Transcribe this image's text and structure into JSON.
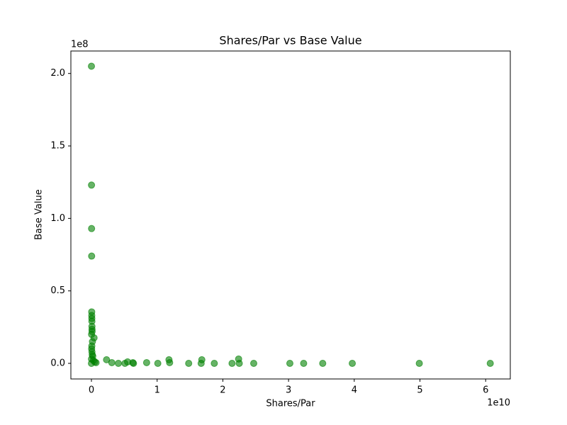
{
  "chart_data": {
    "type": "scatter",
    "title": "Shares/Par vs Base Value",
    "x_label": "Shares/Par",
    "y_label": "Base Value",
    "x_offset_label": "1e10",
    "y_offset_label": "1e8",
    "series": [
      {
        "name": "Base Value",
        "color": "green",
        "x": [
          0,
          10000000,
          20000000,
          30000000,
          40000000,
          50000000,
          60000000,
          70000000,
          80000000,
          90000000,
          100000000,
          20000000,
          400000000,
          150000000,
          60000000,
          30000000,
          80000000,
          120000000,
          200000000,
          10000000,
          300000000,
          500000000,
          700000000,
          0,
          2300000000,
          3100000000,
          4100000000,
          5100000000,
          5500000000,
          6300000000,
          6400000000,
          8400000000,
          10100000000,
          11800000000,
          11900000000,
          14800000000,
          16700000000,
          16800000000,
          18700000000,
          21400000000,
          22400000000,
          22500000000,
          24700000000,
          30200000000,
          32300000000,
          35200000000,
          39700000000,
          49900000000,
          60700000000
        ],
        "y": [
          205000000,
          123000000,
          93000000,
          74000000,
          35500000,
          33000000,
          31000000,
          29000000,
          25500000,
          23500000,
          22000000,
          20000000,
          17600000,
          15000000,
          12000000,
          10000000,
          8000000,
          6000000,
          5000000,
          3000000,
          2000000,
          1000000,
          500000,
          0,
          2500000,
          500000,
          0,
          0,
          1000000,
          500000,
          0,
          500000,
          0,
          2500000,
          500000,
          0,
          0,
          2500000,
          0,
          0,
          3000000,
          0,
          0,
          0,
          0,
          0,
          0,
          0,
          0
        ]
      }
    ],
    "xlim": [
      -3130000000,
      63750000000
    ],
    "ylim": [
      -10760000,
      215500000
    ],
    "xticks": [
      {
        "value": 0,
        "label": "0"
      },
      {
        "value": 10000000000,
        "label": "1"
      },
      {
        "value": 20000000000,
        "label": "2"
      },
      {
        "value": 30000000000,
        "label": "3"
      },
      {
        "value": 40000000000,
        "label": "4"
      },
      {
        "value": 50000000000,
        "label": "5"
      },
      {
        "value": 60000000000,
        "label": "6"
      }
    ],
    "yticks": [
      {
        "value": 0,
        "label": "0.0"
      },
      {
        "value": 50000000,
        "label": "0.5"
      },
      {
        "value": 100000000,
        "label": "1.0"
      },
      {
        "value": 150000000,
        "label": "1.5"
      },
      {
        "value": 200000000,
        "label": "2.0"
      }
    ],
    "grid": false
  }
}
